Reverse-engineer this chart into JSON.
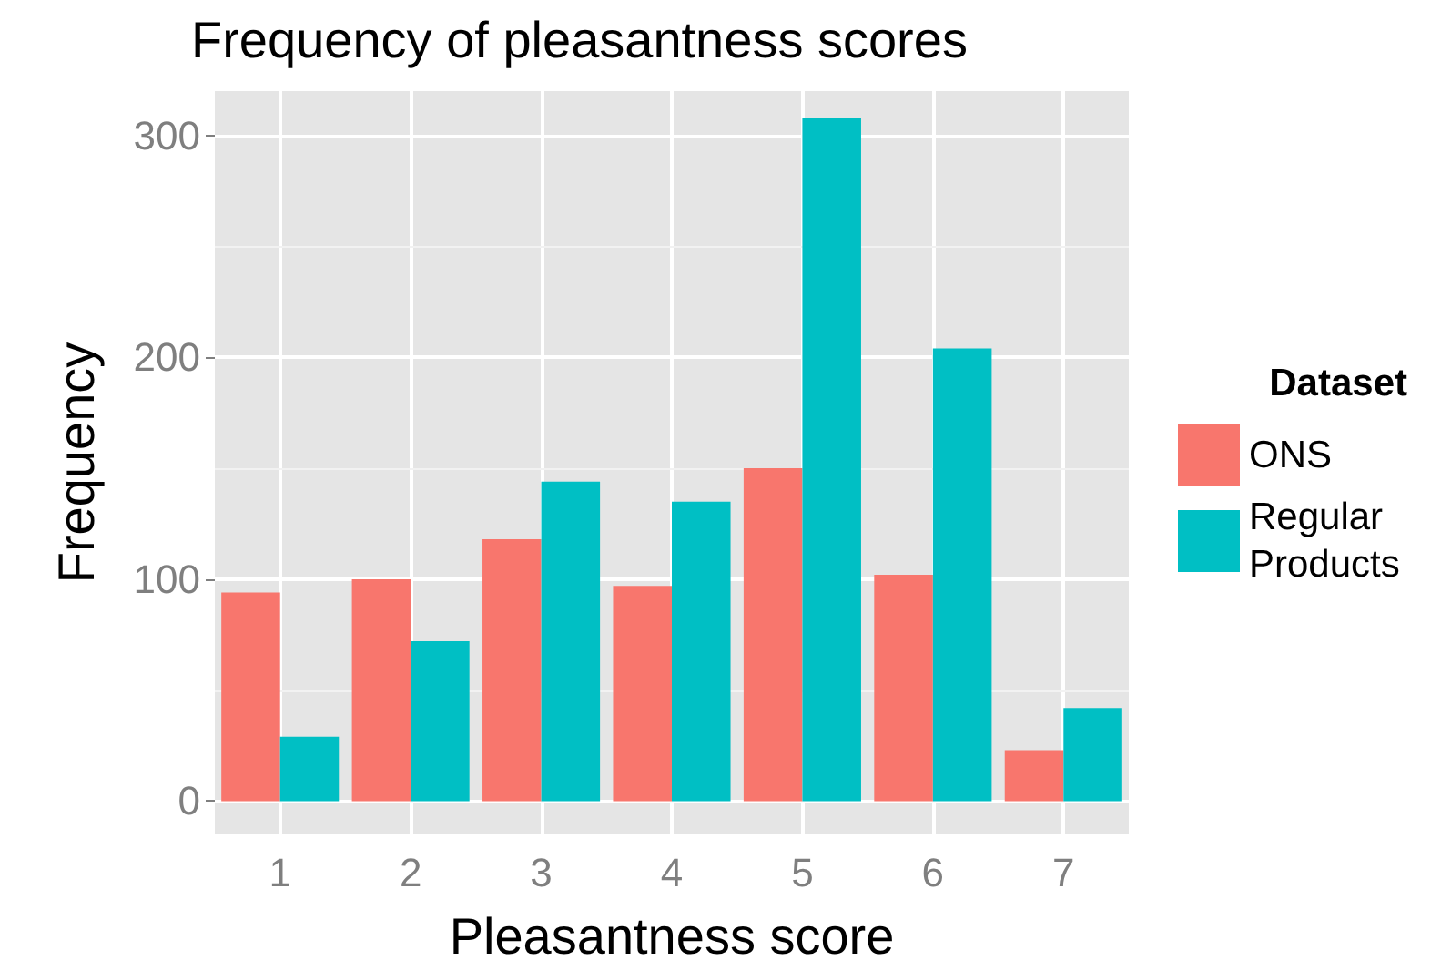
{
  "chart_data": {
    "type": "bar",
    "title": "Frequency of pleasantness scores",
    "xlabel": "Pleasantness score",
    "ylabel": "Frequency",
    "legend_title": "Dataset",
    "categories": [
      "1",
      "2",
      "3",
      "4",
      "5",
      "6",
      "7"
    ],
    "series": [
      {
        "name": "ONS",
        "color": "#f8766d",
        "values": [
          94,
          100,
          118,
          97,
          150,
          102,
          23
        ]
      },
      {
        "name": "Regular Products",
        "color": "#00bfc4",
        "values": [
          29,
          72,
          144,
          135,
          308,
          204,
          42
        ]
      }
    ],
    "ylim": [
      -15,
      320
    ],
    "yticks": [
      0,
      100,
      200,
      300
    ],
    "grid": true,
    "legend": "right"
  }
}
